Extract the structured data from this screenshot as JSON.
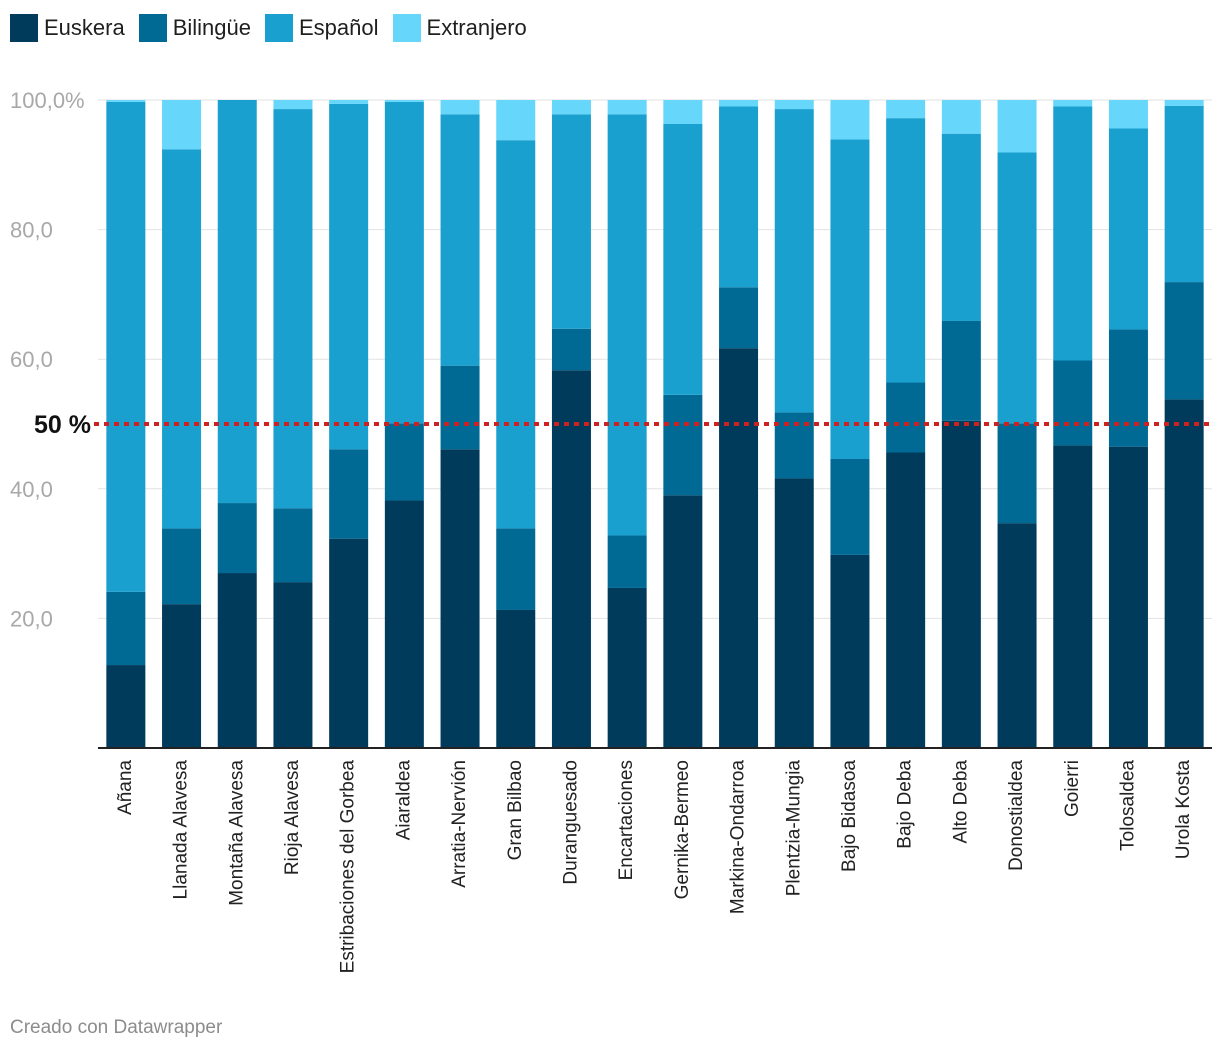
{
  "chart_data": {
    "type": "bar",
    "stacked": true,
    "categories": [
      "Añana",
      "Llanada Alavesa",
      "Montaña Alavesa",
      "Rioja Alavesa",
      "Estribaciones del Gorbea",
      "Aiaraldea",
      "Arratia-Nervión",
      "Gran Bilbao",
      "Duranguesado",
      "Encartaciones",
      "Gernika-Bermeo",
      "Markina-Ondarroa",
      "Plentzia-Mungia",
      "Bajo Bidasoa",
      "Bajo Deba",
      "Alto Deba",
      "Donostialdea",
      "Goierri",
      "Tolosaldea",
      "Urola Kosta"
    ],
    "series": [
      {
        "name": "Euskera",
        "color": "#003b5c",
        "values": [
          12.8,
          22.2,
          27.0,
          25.6,
          32.3,
          38.2,
          46.1,
          21.3,
          58.3,
          24.7,
          39.0,
          61.7,
          41.6,
          29.8,
          45.6,
          50.5,
          34.7,
          46.7,
          46.5,
          53.8
        ]
      },
      {
        "name": "Bilingüe",
        "color": "#006994",
        "values": [
          11.3,
          11.7,
          10.8,
          11.4,
          13.8,
          11.9,
          12.9,
          12.6,
          6.4,
          8.1,
          15.5,
          9.4,
          10.2,
          14.8,
          10.8,
          15.4,
          15.4,
          13.1,
          18.1,
          18.1
        ]
      },
      {
        "name": "Español",
        "color": "#1aa0cf",
        "values": [
          75.6,
          58.5,
          62.2,
          61.6,
          53.3,
          49.6,
          38.8,
          59.9,
          33.1,
          65.0,
          41.8,
          27.9,
          46.8,
          49.3,
          40.8,
          28.9,
          41.8,
          39.2,
          31.0,
          27.2
        ]
      },
      {
        "name": "Extranjero",
        "color": "#66d6fb",
        "values": [
          0.3,
          7.6,
          0.0,
          1.4,
          0.6,
          0.3,
          2.2,
          6.2,
          2.2,
          2.2,
          3.7,
          1.0,
          1.4,
          6.1,
          2.8,
          5.2,
          8.1,
          1.0,
          4.4,
          0.9
        ]
      }
    ],
    "yticks": [
      20,
      40,
      60,
      80,
      100
    ],
    "ytick_labels": [
      "20,0",
      "40,0",
      "60,0",
      "80,0",
      "100,0%"
    ],
    "ylim": [
      0,
      100
    ],
    "reference_line": {
      "value": 50,
      "label": "50 %",
      "color": "#cc2222"
    },
    "xlabel": "",
    "ylabel": "",
    "title": ""
  },
  "footer": "Creado con Datawrapper"
}
